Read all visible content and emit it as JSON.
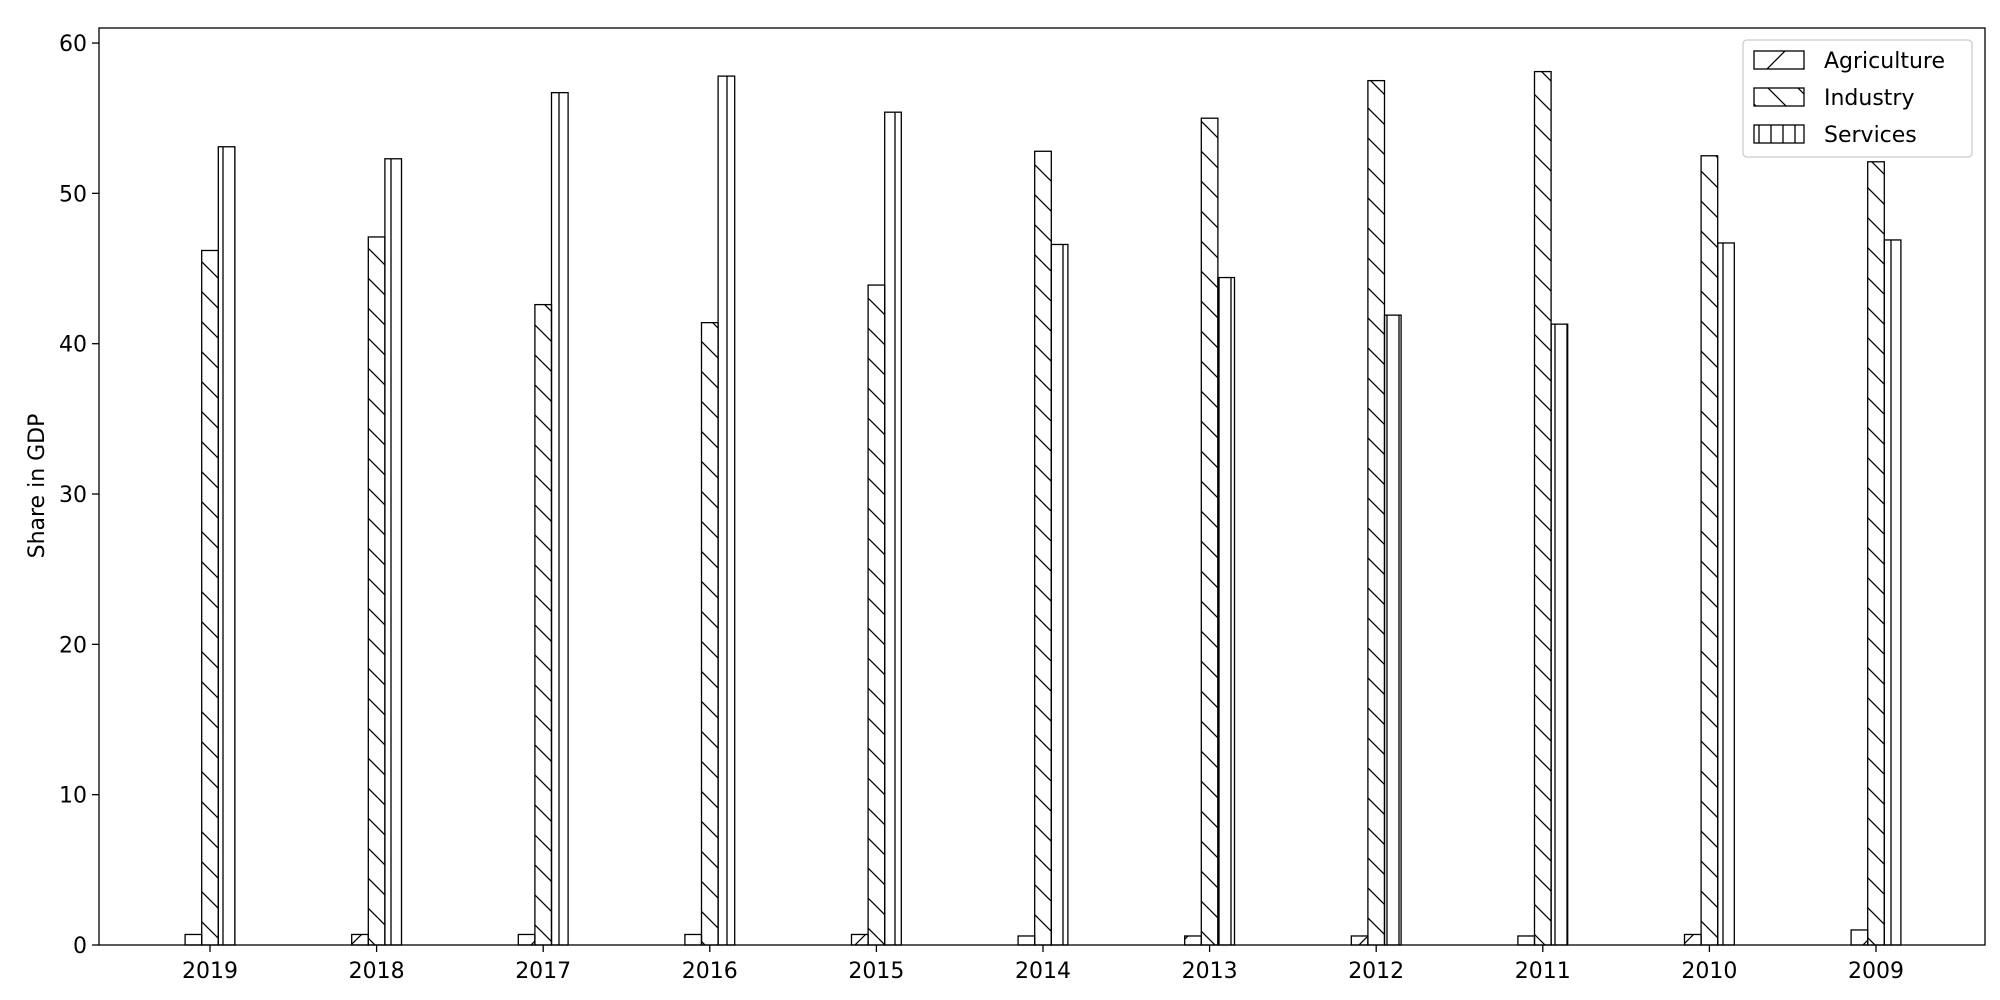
{
  "chart_data": {
    "type": "bar",
    "title": "",
    "xlabel": "",
    "ylabel": "Share in GDP",
    "ylim": [
      0,
      61
    ],
    "yticks": [
      0,
      10,
      20,
      30,
      40,
      50,
      60
    ],
    "categories": [
      "2019",
      "2018",
      "2017",
      "2016",
      "2015",
      "2014",
      "2013",
      "2012",
      "2011",
      "2010",
      "2009"
    ],
    "series": [
      {
        "name": "Agriculture",
        "hatch": "forward",
        "values": [
          0.7,
          0.7,
          0.7,
          0.7,
          0.7,
          0.6,
          0.6,
          0.6,
          0.6,
          0.7,
          1.0
        ]
      },
      {
        "name": "Industry",
        "hatch": "back",
        "values": [
          46.2,
          47.1,
          42.6,
          41.4,
          43.9,
          52.8,
          55.0,
          57.5,
          58.1,
          52.5,
          52.1
        ]
      },
      {
        "name": "Services",
        "hatch": "vertical",
        "values": [
          53.1,
          52.3,
          56.7,
          57.8,
          55.4,
          46.6,
          44.4,
          41.9,
          41.3,
          46.7,
          46.9
        ]
      }
    ],
    "legend_position": "top-right",
    "grid": false
  }
}
